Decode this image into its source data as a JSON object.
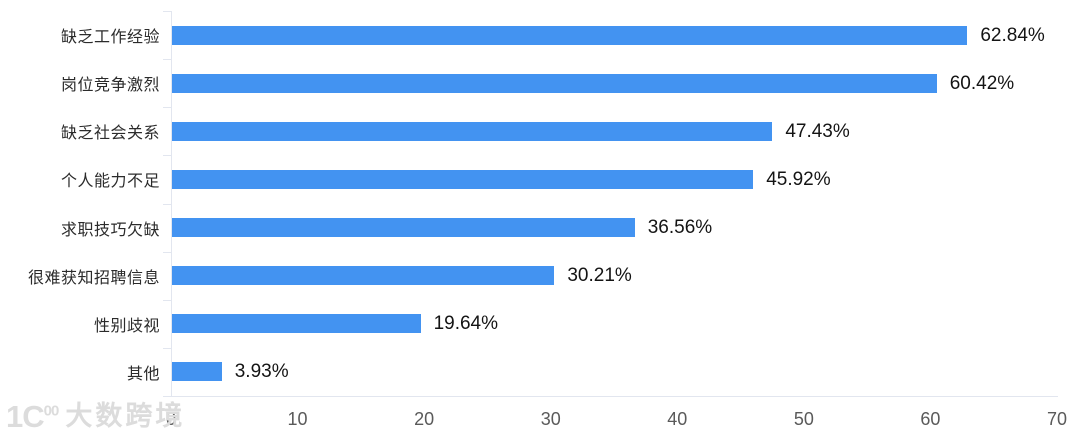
{
  "chart_data": {
    "type": "bar",
    "orientation": "horizontal",
    "title": "",
    "categories": [
      "缺乏工作经验",
      "岗位竞争激烈",
      "缺乏社会关系",
      "个人能力不足",
      "求职技巧欠缺",
      "很难获知招聘信息",
      "性别歧视",
      "其他"
    ],
    "values": [
      62.84,
      60.42,
      47.43,
      45.92,
      36.56,
      30.21,
      19.64,
      3.93
    ],
    "value_labels": [
      "62.84%",
      "60.42%",
      "47.43%",
      "45.92%",
      "36.56%",
      "30.21%",
      "19.64%",
      "3.93%"
    ],
    "xlim": [
      0,
      70
    ],
    "x_ticks": [
      "0",
      "10",
      "20",
      "30",
      "40",
      "50",
      "60",
      "70"
    ],
    "grid": false,
    "legend": false,
    "bar_color": "#4393F1",
    "axis_line_color": "#E2E6EF",
    "value_label_color": "#141414",
    "category_label_color": "#2B2B2B",
    "tick_label_color": "#5A5A5A"
  },
  "watermark": {
    "logo_text": "1Ϲ",
    "logo_sup": "00",
    "text": "大数跨境",
    "color": "#DCDCDC"
  }
}
